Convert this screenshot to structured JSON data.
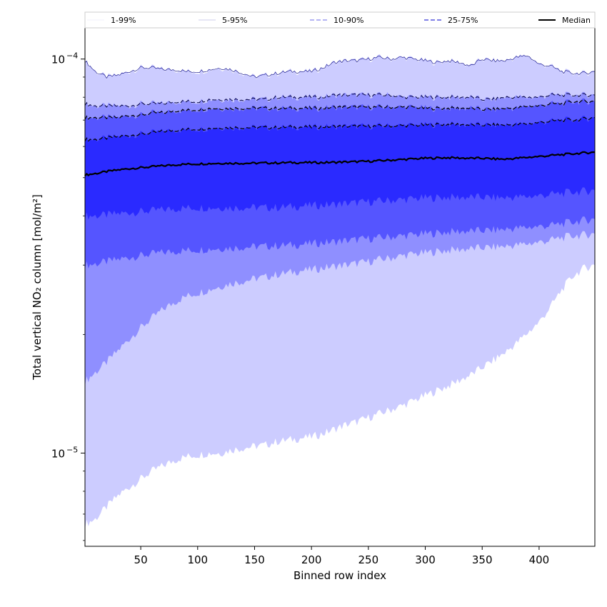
{
  "chart_data": {
    "type": "area",
    "title": "",
    "xlabel": "Binned row index",
    "ylabel": "Total vertical NO₂ column [mol/m²]",
    "x_range": [
      1,
      449
    ],
    "ylim": [
      5.8e-06,
      0.00012
    ],
    "y_scale": "log",
    "x_ticks": [
      50,
      100,
      150,
      200,
      250,
      300,
      350,
      400
    ],
    "x_tick_labels": [
      "50",
      "100",
      "150",
      "200",
      "250",
      "300",
      "350",
      "400"
    ],
    "y_major_ticks": [
      {
        "value": 1e-05,
        "base": "10",
        "exp": "−5"
      },
      {
        "value": 0.0001,
        "base": "10",
        "exp": "−4"
      }
    ],
    "y_minor_ticks": [
      6e-06,
      7e-06,
      8e-06,
      9e-06,
      2e-05,
      3e-05,
      4e-05,
      5e-05,
      6e-05,
      7e-05,
      8e-05,
      9e-05
    ],
    "grid": false,
    "legend": {
      "placement": "top, above plot",
      "entries": [
        {
          "label": "1-99%",
          "color": "#e6e6f8",
          "dash": "solid",
          "width": 0.6
        },
        {
          "label": "5-95%",
          "color": "#9a9ad8",
          "dash": "solid",
          "width": 0.6
        },
        {
          "label": "10-90%",
          "color": "#8888ee",
          "dash": "6,3",
          "width": 1.2
        },
        {
          "label": "25-75%",
          "color": "#5555dd",
          "dash": "6,3",
          "width": 1.4
        },
        {
          "label": "Median",
          "color": "#000000",
          "dash": "solid",
          "width": 2
        }
      ]
    },
    "x": [
      1,
      10,
      20,
      30,
      40,
      50,
      60,
      70,
      80,
      90,
      100,
      110,
      120,
      130,
      140,
      150,
      160,
      170,
      180,
      190,
      200,
      210,
      220,
      230,
      240,
      250,
      260,
      270,
      280,
      290,
      300,
      310,
      320,
      330,
      340,
      350,
      360,
      370,
      380,
      390,
      400,
      410,
      420,
      430,
      440,
      449
    ],
    "bands": [
      {
        "name": "1-99%",
        "color": "#ccccff",
        "lower": [
          6.6e-06,
          6.8e-06,
          7.3e-06,
          7.8e-06,
          8.2e-06,
          8.6e-06,
          9e-06,
          9.3e-06,
          9.6e-06,
          9.8e-06,
          9.9e-06,
          1e-05,
          1e-05,
          1.02e-05,
          1.03e-05,
          1.04e-05,
          1.05e-05,
          1.07e-05,
          1.08e-05,
          1.09e-05,
          1.1e-05,
          1.12e-05,
          1.15e-05,
          1.18e-05,
          1.2e-05,
          1.23e-05,
          1.26e-05,
          1.29e-05,
          1.32e-05,
          1.36e-05,
          1.4e-05,
          1.44e-05,
          1.48e-05,
          1.53e-05,
          1.58e-05,
          1.65e-05,
          1.72e-05,
          1.8e-05,
          1.9e-05,
          2.02e-05,
          2.15e-05,
          2.35e-05,
          2.6e-05,
          2.82e-05,
          2.95e-05,
          3e-05
        ],
        "upper": [
          9.9e-05,
          9.3e-05,
          9e-05,
          9.1e-05,
          9.3e-05,
          9.5e-05,
          9.5e-05,
          9.4e-05,
          9.4e-05,
          9.3e-05,
          9.3e-05,
          9.4e-05,
          9.5e-05,
          9.4e-05,
          9.2e-05,
          9e-05,
          9.1e-05,
          9.2e-05,
          9.3e-05,
          9.3e-05,
          9.3e-05,
          9.5e-05,
          9.8e-05,
          9.9e-05,
          9.9e-05,
          0.0001,
          0.000101,
          0.0001,
          0.000101,
          0.0001,
          9.9e-05,
          9.8e-05,
          9.9e-05,
          9.8e-05,
          9.6e-05,
          0.0001,
          9.9e-05,
          9.9e-05,
          0.000101,
          0.000102,
          9.7e-05,
          9.6e-05,
          9.3e-05,
          9.2e-05,
          9.2e-05,
          9.3e-05
        ]
      },
      {
        "name": "5-95%",
        "color": "#8f8fff",
        "lower": [
          1.52e-05,
          1.6e-05,
          1.7e-05,
          1.82e-05,
          1.95e-05,
          2.08e-05,
          2.2e-05,
          2.32e-05,
          2.42e-05,
          2.5e-05,
          2.55e-05,
          2.6e-05,
          2.65e-05,
          2.7e-05,
          2.73e-05,
          2.77e-05,
          2.8e-05,
          2.84e-05,
          2.87e-05,
          2.9e-05,
          2.92e-05,
          2.95e-05,
          2.98e-05,
          3e-05,
          3.03e-05,
          3.06e-05,
          3.1e-05,
          3.13e-05,
          3.17e-05,
          3.2e-05,
          3.22e-05,
          3.25e-05,
          3.27e-05,
          3.29e-05,
          3.3e-05,
          3.32e-05,
          3.33e-05,
          3.35e-05,
          3.37e-05,
          3.4e-05,
          3.43e-05,
          3.47e-05,
          3.52e-05,
          3.56e-05,
          3.58e-05,
          3.6e-05
        ],
        "upper": [
          7.7e-05,
          7.6e-05,
          7.6e-05,
          7.6e-05,
          7.6e-05,
          7.7e-05,
          7.7e-05,
          7.7e-05,
          7.8e-05,
          7.8e-05,
          7.8e-05,
          7.9e-05,
          7.9e-05,
          7.9e-05,
          7.9e-05,
          7.9e-05,
          7.9e-05,
          8e-05,
          8e-05,
          8e-05,
          8e-05,
          8e-05,
          8.1e-05,
          8.1e-05,
          8.1e-05,
          8.1e-05,
          8.1e-05,
          8.1e-05,
          8e-05,
          8e-05,
          8e-05,
          8e-05,
          8e-05,
          8e-05,
          8e-05,
          7.9e-05,
          7.9e-05,
          8e-05,
          8e-05,
          8e-05,
          8e-05,
          8.1e-05,
          8.1e-05,
          8.1e-05,
          8.1e-05,
          8.1e-05
        ]
      },
      {
        "name": "10-90%",
        "color": "#5555ff",
        "lower": [
          3e-05,
          3.02e-05,
          3.06e-05,
          3.1e-05,
          3.14e-05,
          3.17e-05,
          3.2e-05,
          3.23e-05,
          3.25e-05,
          3.27e-05,
          3.28e-05,
          3.3e-05,
          3.31e-05,
          3.32e-05,
          3.33e-05,
          3.34e-05,
          3.35e-05,
          3.36e-05,
          3.37e-05,
          3.38e-05,
          3.4e-05,
          3.42e-05,
          3.44e-05,
          3.46e-05,
          3.48e-05,
          3.5e-05,
          3.52e-05,
          3.54e-05,
          3.56e-05,
          3.58e-05,
          3.6e-05,
          3.62e-05,
          3.64e-05,
          3.65e-05,
          3.66e-05,
          3.67e-05,
          3.68e-05,
          3.7e-05,
          3.72e-05,
          3.74e-05,
          3.76e-05,
          3.78e-05,
          3.82e-05,
          3.86e-05,
          3.9e-05,
          3.92e-05
        ],
        "upper": [
          7.1e-05,
          7.1e-05,
          7.1e-05,
          7.1e-05,
          7.2e-05,
          7.2e-05,
          7.3e-05,
          7.3e-05,
          7.4e-05,
          7.4e-05,
          7.45e-05,
          7.5e-05,
          7.5e-05,
          7.5e-05,
          7.5e-05,
          7.5e-05,
          7.5e-05,
          7.5e-05,
          7.5e-05,
          7.5e-05,
          7.5e-05,
          7.5e-05,
          7.55e-05,
          7.55e-05,
          7.55e-05,
          7.55e-05,
          7.55e-05,
          7.55e-05,
          7.55e-05,
          7.55e-05,
          7.5e-05,
          7.5e-05,
          7.5e-05,
          7.5e-05,
          7.5e-05,
          7.45e-05,
          7.45e-05,
          7.5e-05,
          7.5e-05,
          7.6e-05,
          7.6e-05,
          7.7e-05,
          7.7e-05,
          7.8e-05,
          7.8e-05,
          7.8e-05
        ]
      },
      {
        "name": "25-75%",
        "color": "#2a2aff",
        "lower": [
          4e-05,
          4e-05,
          4.02e-05,
          4.05e-05,
          4.08e-05,
          4.1e-05,
          4.12e-05,
          4.15e-05,
          4.17e-05,
          4.19e-05,
          4.2e-05,
          4.2e-05,
          4.2e-05,
          4.2e-05,
          4.2e-05,
          4.2e-05,
          4.2e-05,
          4.2e-05,
          4.22e-05,
          4.23e-05,
          4.25e-05,
          4.26e-05,
          4.28e-05,
          4.3e-05,
          4.32e-05,
          4.34e-05,
          4.36e-05,
          4.38e-05,
          4.4e-05,
          4.42e-05,
          4.44e-05,
          4.45e-05,
          4.46e-05,
          4.46e-05,
          4.46e-05,
          4.46e-05,
          4.45e-05,
          4.45e-05,
          4.46e-05,
          4.48e-05,
          4.5e-05,
          4.53e-05,
          4.56e-05,
          4.6e-05,
          4.62e-05,
          4.64e-05
        ],
        "upper": [
          6.25e-05,
          6.25e-05,
          6.3e-05,
          6.35e-05,
          6.4e-05,
          6.45e-05,
          6.5e-05,
          6.55e-05,
          6.6e-05,
          6.62e-05,
          6.65e-05,
          6.67e-05,
          6.7e-05,
          6.7e-05,
          6.7e-05,
          6.7e-05,
          6.7e-05,
          6.7e-05,
          6.72e-05,
          6.72e-05,
          6.72e-05,
          6.73e-05,
          6.74e-05,
          6.75e-05,
          6.75e-05,
          6.75e-05,
          6.76e-05,
          6.77e-05,
          6.78e-05,
          6.79e-05,
          6.8e-05,
          6.82e-05,
          6.83e-05,
          6.82e-05,
          6.8e-05,
          6.8e-05,
          6.8e-05,
          6.8e-05,
          6.82e-05,
          6.85e-05,
          6.9e-05,
          6.95e-05,
          7e-05,
          7e-05,
          7.05e-05,
          7.1e-05
        ]
      }
    ],
    "lines": [
      {
        "name": "1-99% upper",
        "band": 0,
        "edge": "upper",
        "dash": "solid",
        "color": "#000080",
        "width": 0.6
      },
      {
        "name": "5-95% upper",
        "band": 1,
        "edge": "upper",
        "dash": "6,3",
        "color": "#000040",
        "width": 1
      },
      {
        "name": "10-90% upper",
        "band": 2,
        "edge": "upper",
        "dash": "6,3",
        "color": "#000000",
        "width": 1.2
      },
      {
        "name": "25-75% upper",
        "band": 3,
        "edge": "upper",
        "dash": "6,3",
        "color": "#000000",
        "width": 1.2
      }
    ],
    "median": [
      5.08e-05,
      5.12e-05,
      5.18e-05,
      5.23e-05,
      5.27e-05,
      5.3e-05,
      5.33e-05,
      5.36e-05,
      5.39e-05,
      5.41e-05,
      5.42e-05,
      5.43e-05,
      5.44e-05,
      5.44e-05,
      5.44e-05,
      5.44e-05,
      5.45e-05,
      5.45e-05,
      5.46e-05,
      5.46e-05,
      5.46e-05,
      5.46e-05,
      5.47e-05,
      5.48e-05,
      5.49e-05,
      5.5e-05,
      5.52e-05,
      5.54e-05,
      5.56e-05,
      5.58e-05,
      5.6e-05,
      5.61e-05,
      5.62e-05,
      5.61e-05,
      5.6e-05,
      5.6e-05,
      5.58e-05,
      5.57e-05,
      5.6e-05,
      5.63e-05,
      5.66e-05,
      5.69e-05,
      5.72e-05,
      5.75e-05,
      5.78e-05,
      5.8e-05
    ],
    "median_color": "#000000"
  }
}
